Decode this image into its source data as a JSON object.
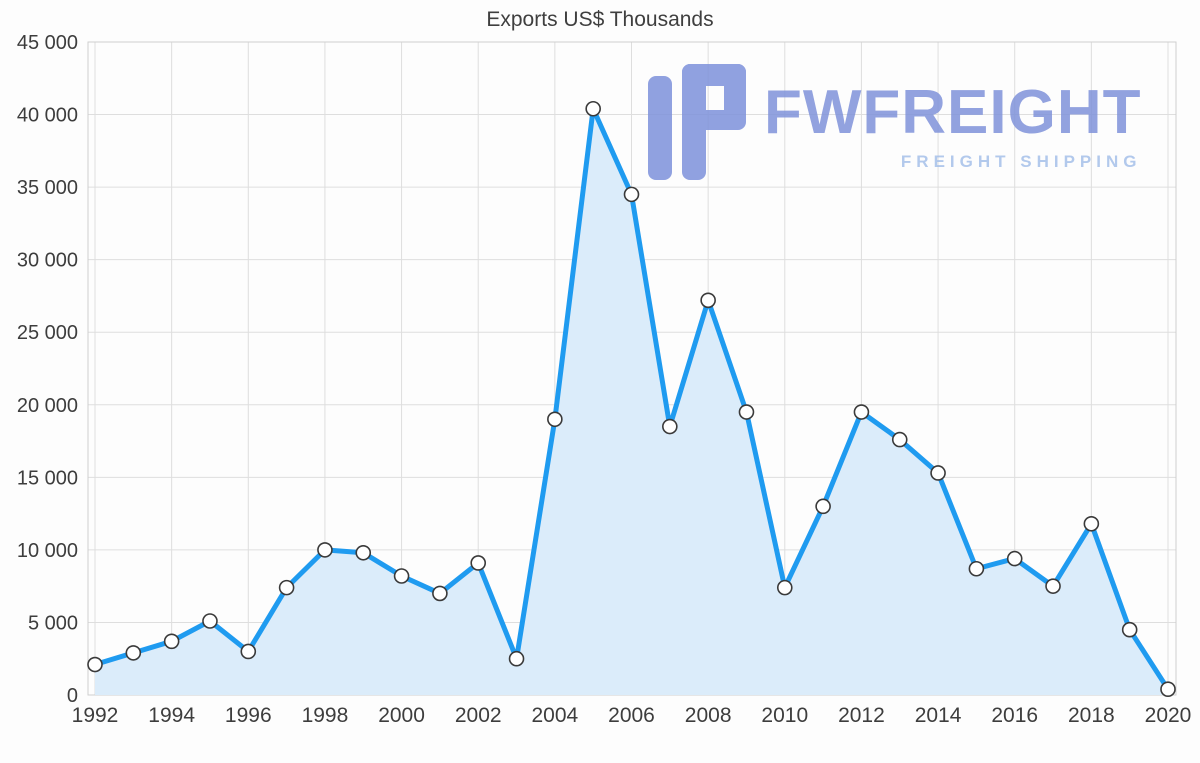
{
  "chart_data": {
    "type": "area",
    "title": "Exports US$ Thousands",
    "x": [
      1992,
      1993,
      1994,
      1995,
      1996,
      1997,
      1998,
      1999,
      2000,
      2001,
      2002,
      2003,
      2004,
      2005,
      2006,
      2007,
      2008,
      2009,
      2010,
      2011,
      2012,
      2013,
      2014,
      2015,
      2016,
      2017,
      2018,
      2019,
      2020
    ],
    "values": [
      2100,
      2900,
      3700,
      5100,
      3000,
      7400,
      10000,
      9800,
      8200,
      7000,
      9100,
      2500,
      19000,
      40400,
      34500,
      18500,
      27200,
      19500,
      7400,
      13000,
      19500,
      17600,
      15300,
      8700,
      9400,
      7500,
      11800,
      4500,
      400
    ],
    "xlabel": "",
    "ylabel": "",
    "ylim": [
      0,
      45000
    ],
    "y_ticks": [
      0,
      5000,
      10000,
      15000,
      20000,
      25000,
      30000,
      35000,
      40000,
      45000
    ],
    "x_ticks": [
      1992,
      1994,
      1996,
      1998,
      2000,
      2002,
      2004,
      2006,
      2008,
      2010,
      2012,
      2014,
      2016,
      2018,
      2020
    ],
    "grid": true,
    "legend": "none",
    "line_color": "#1f9bf0",
    "fill_color": "#dbecfa",
    "marker_fill": "#ffffff",
    "marker_stroke": "#3a3a3a",
    "grid_color": "#dedede",
    "border_color": "#cfcfcf",
    "axis_text_color": "#3d3d3d"
  },
  "watermark": {
    "brand": "FWFREIGHT",
    "tagline": "FREIGHT SHIPPING",
    "brand_color": "#8093da",
    "tagline_color": "#a6c0ea",
    "icon_color": "#7e92db"
  }
}
